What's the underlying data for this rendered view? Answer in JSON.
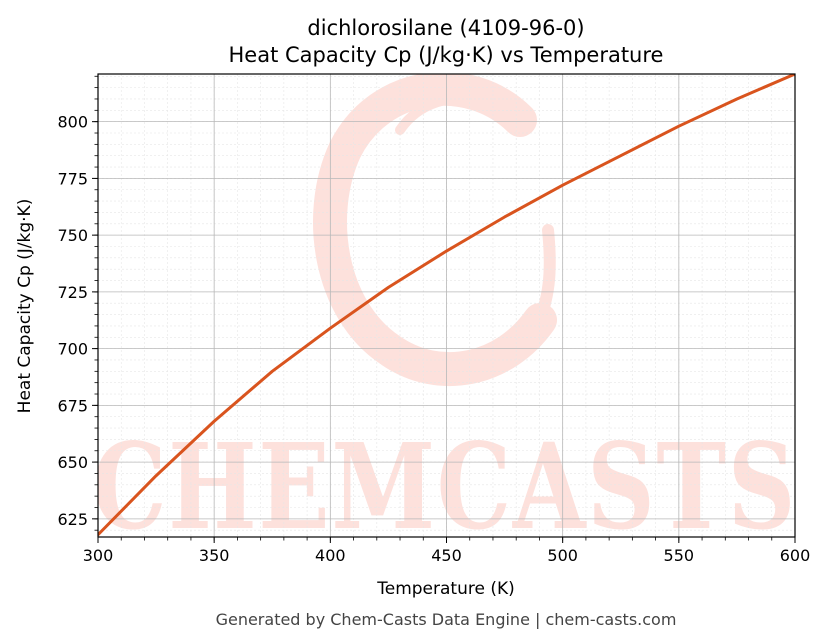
{
  "chart_data": {
    "type": "line",
    "title": "dichlorosilane (4109-96-0)",
    "subtitle": "Heat Capacity Cp (J/kg·K) vs Temperature",
    "xlabel": "Temperature (K)",
    "ylabel": "Heat Capacity Cp (J/kg·K)",
    "xlim": [
      300,
      600
    ],
    "ylim": [
      617,
      821
    ],
    "xticks": [
      300,
      350,
      400,
      450,
      500,
      550,
      600
    ],
    "yticks": [
      625,
      650,
      675,
      700,
      725,
      750,
      775,
      800
    ],
    "grid": true,
    "series": [
      {
        "color": "#d9541e",
        "x": [
          300,
          325,
          350,
          375,
          400,
          425,
          450,
          475,
          500,
          525,
          550,
          575,
          600
        ],
        "y": [
          618,
          644,
          668,
          690,
          709,
          727,
          743,
          758,
          772,
          785,
          798,
          810,
          821
        ]
      }
    ]
  },
  "watermark": {
    "text": "CHEMCASTS",
    "color": "#fde1dc"
  },
  "footer": "Generated by Chem-Casts Data Engine | chem-casts.com"
}
